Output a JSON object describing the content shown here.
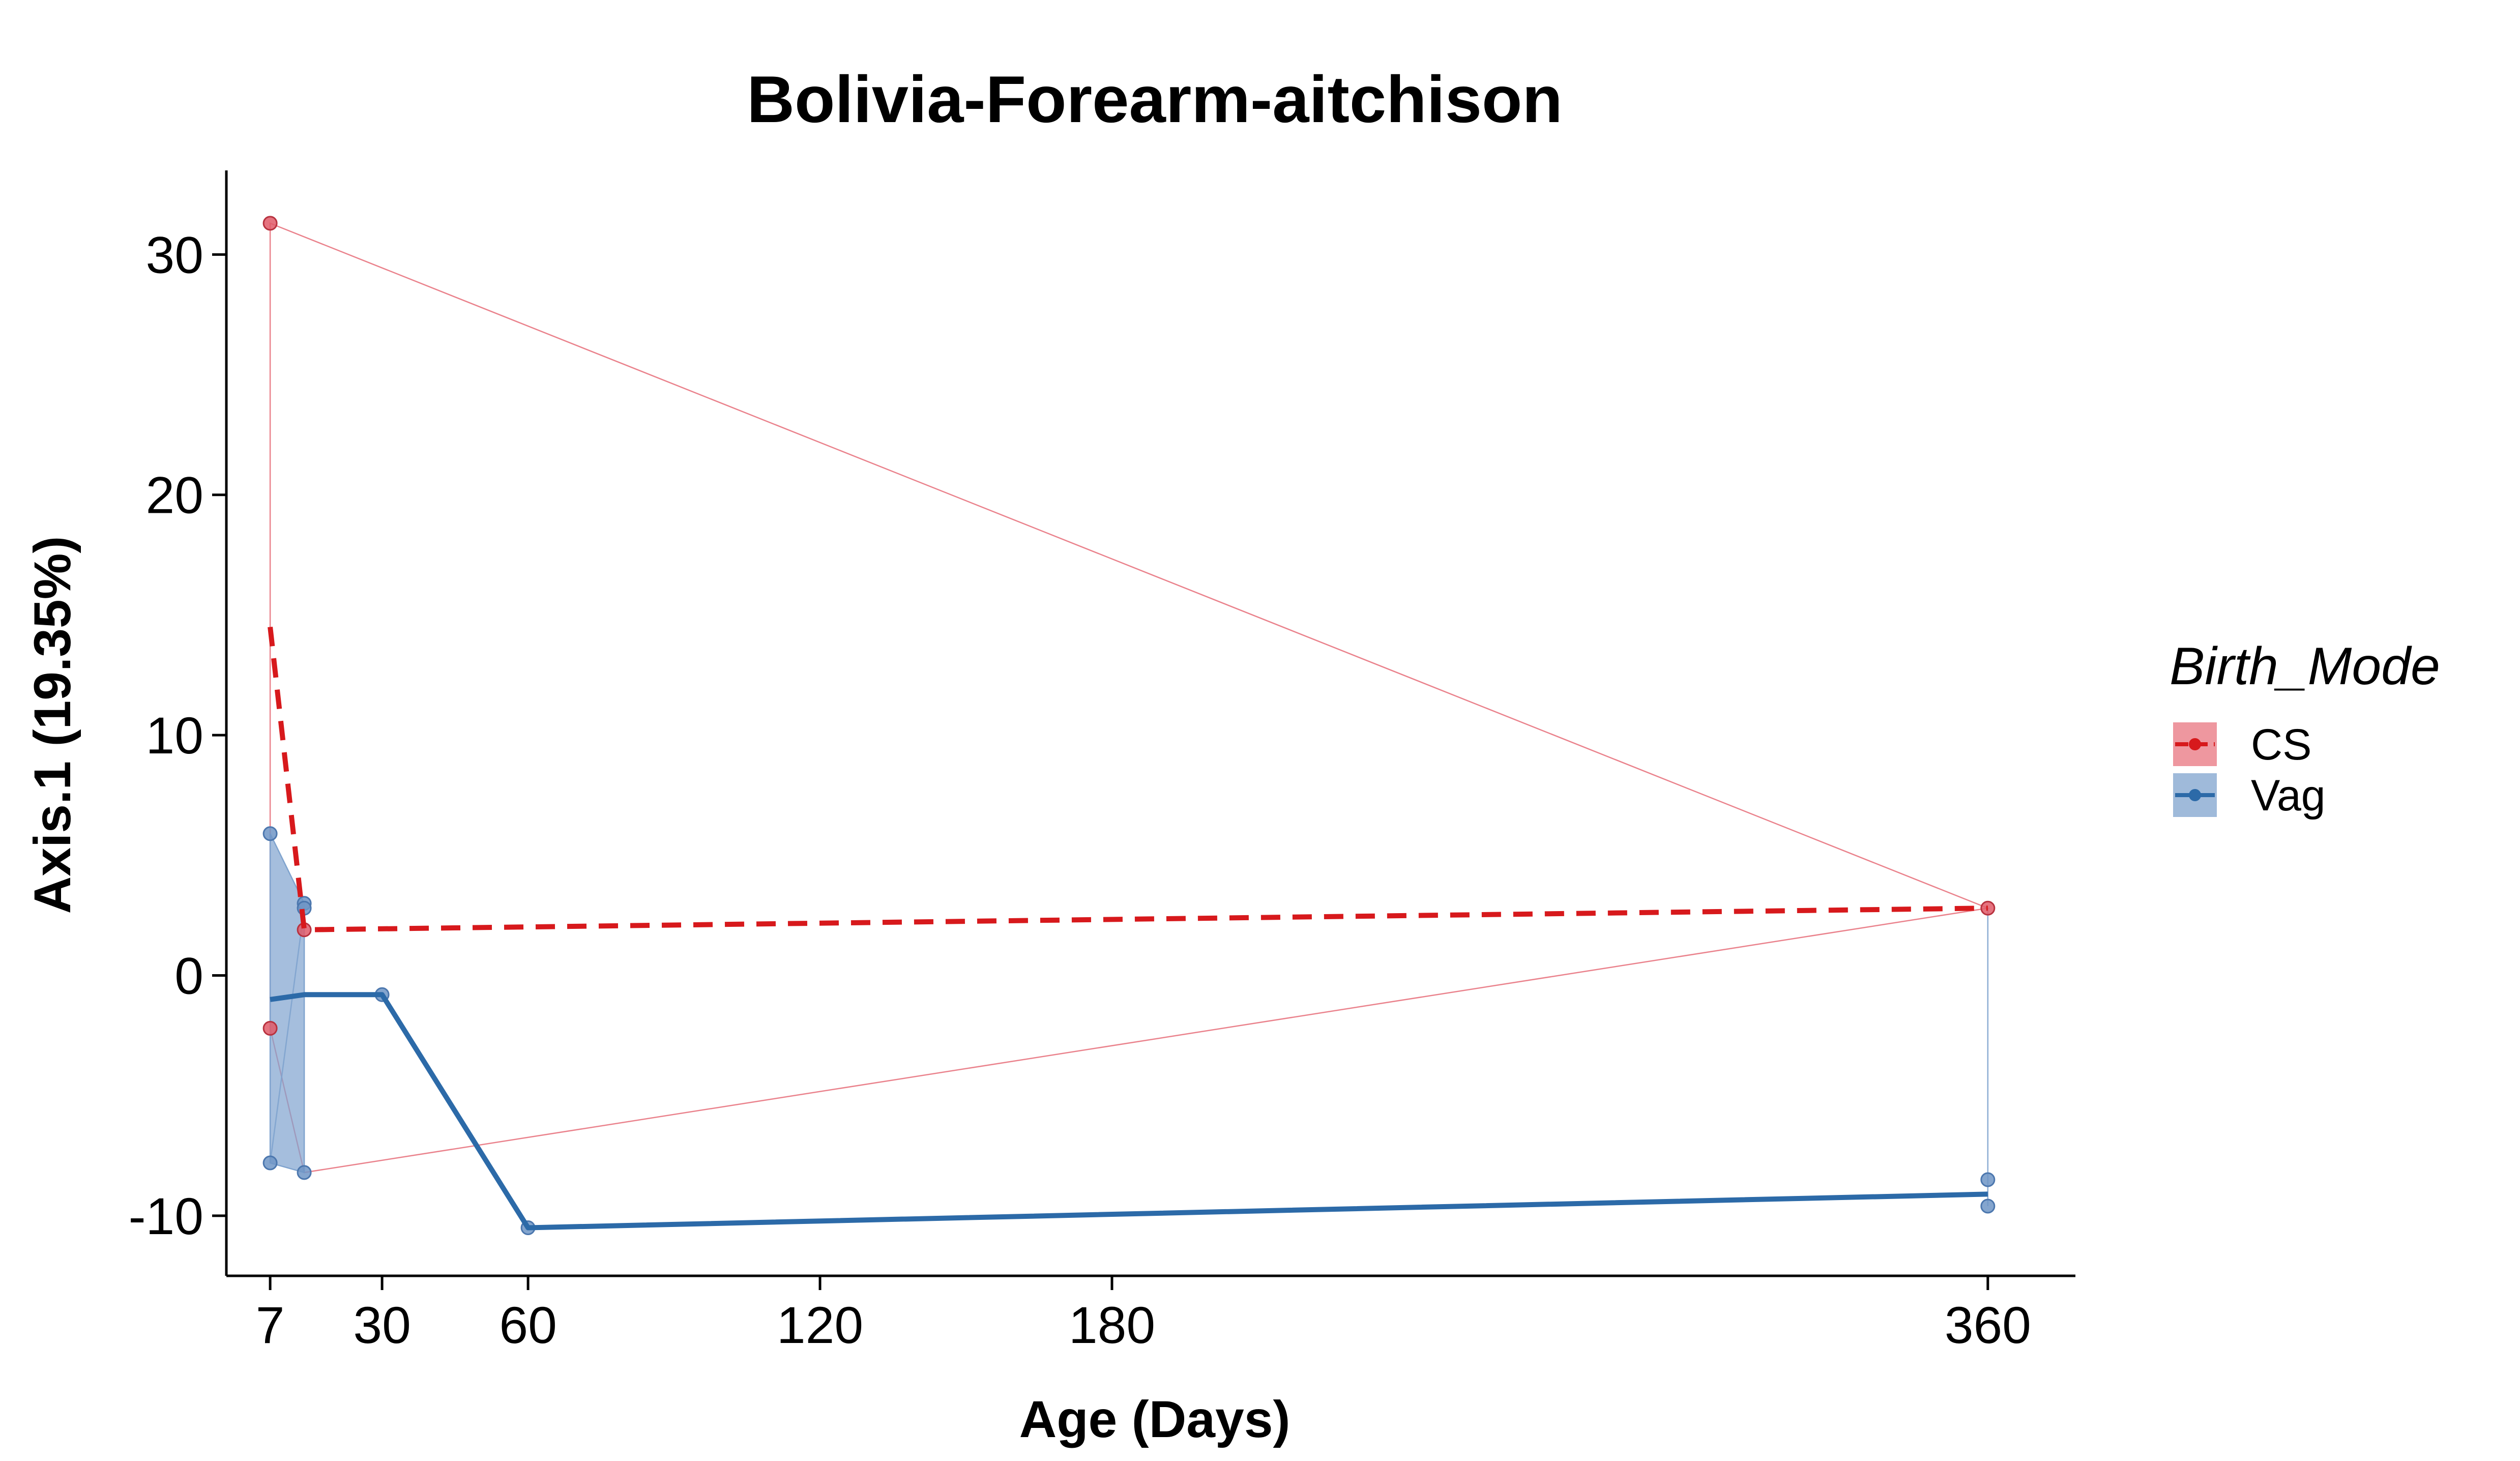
{
  "chart_data": {
    "type": "line",
    "title": "Bolivia-Forearm-aitchison",
    "xlabel": "Age (Days)",
    "ylabel": "Axis.1 (19.35%)",
    "xlim": [
      -2,
      378
    ],
    "ylim": [
      -12.5,
      33.5
    ],
    "x_ticks": [
      7,
      30,
      60,
      120,
      180,
      360
    ],
    "y_ticks": [
      -10,
      0,
      10,
      20,
      30
    ],
    "x_tick_labels": [
      "7",
      "30",
      "60",
      "120",
      "180",
      "360"
    ],
    "y_tick_labels": [
      "-10",
      "0",
      "10",
      "20",
      "30"
    ],
    "grid": false,
    "legend": {
      "title": "Birth_Mode",
      "placement": "right",
      "entries": [
        "CS",
        "Vag"
      ]
    },
    "series": [
      {
        "name": "CS",
        "color": "#D7191C",
        "fill": "#E8747F",
        "line_style": "dashed",
        "trend": [
          {
            "x": 7,
            "y": 14.5
          },
          {
            "x": 14,
            "y": 1.9
          },
          {
            "x": 360,
            "y": 2.8
          }
        ],
        "points": [
          {
            "x": 7,
            "y": 31.3
          },
          {
            "x": 7,
            "y": -2.2
          },
          {
            "x": 14,
            "y": 1.9
          },
          {
            "x": 360,
            "y": 2.8
          }
        ],
        "hull": [
          {
            "x": 7,
            "y": 31.3
          },
          {
            "x": 360,
            "y": 2.8
          },
          {
            "x": 14,
            "y": -8.2
          },
          {
            "x": 7,
            "y": -2.2
          }
        ]
      },
      {
        "name": "Vag",
        "color": "#2C6AA8",
        "fill": "#7FA3CE",
        "line_style": "solid",
        "trend": [
          {
            "x": 7,
            "y": -1.0
          },
          {
            "x": 14,
            "y": -0.8
          },
          {
            "x": 30,
            "y": -0.8
          },
          {
            "x": 60,
            "y": -10.5
          },
          {
            "x": 360,
            "y": -9.1
          }
        ],
        "points": [
          {
            "x": 7,
            "y": 5.9
          },
          {
            "x": 7,
            "y": -7.8
          },
          {
            "x": 14,
            "y": 3.0
          },
          {
            "x": 14,
            "y": 2.8
          },
          {
            "x": 14,
            "y": -8.2
          },
          {
            "x": 30,
            "y": -0.8
          },
          {
            "x": 60,
            "y": -10.5
          },
          {
            "x": 360,
            "y": -8.5
          },
          {
            "x": 360,
            "y": -9.6
          }
        ],
        "band": [
          {
            "x": 7,
            "y": 5.9
          },
          {
            "x": 14,
            "y": 3.0
          },
          {
            "x": 14,
            "y": -8.2
          },
          {
            "x": 7,
            "y": -7.8
          }
        ],
        "band_edges": [
          [
            {
              "x": 7,
              "y": -7.8
            },
            {
              "x": 14,
              "y": 2.8
            }
          ],
          [
            {
              "x": 360,
              "y": 2.8
            },
            {
              "x": 360,
              "y": -9.6
            }
          ]
        ]
      }
    ]
  }
}
